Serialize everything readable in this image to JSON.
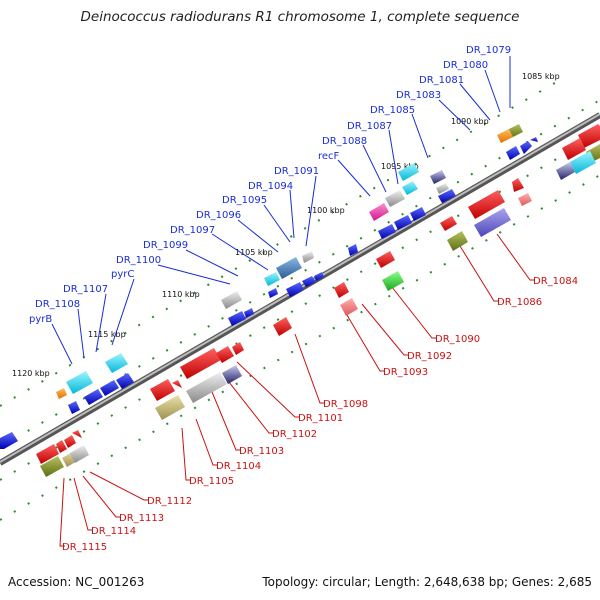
{
  "title": "Deinococcus radiodurans R1 chromosome 1, complete sequence",
  "footer": {
    "accession": "Accession: NC_001263",
    "stats": "Topology: circular; Length: 2,648,638 bp; Genes: 2,685"
  },
  "colors": {
    "forward_label": "#1a2dd6",
    "reverse_label": "#cc1111",
    "backbone": "#8a8a8a",
    "tick": "#2e8b2e"
  },
  "kbp_ticks": [
    "1085 kbp",
    "1090 kbp",
    "1095 kbp",
    "1100 kbp",
    "1105 kbp",
    "1110 kbp",
    "1115 kbp",
    "1120 kbp"
  ],
  "forward_labels": [
    "DR_1079",
    "DR_1080",
    "DR_1081",
    "DR_1083",
    "DR_1085",
    "DR_1087",
    "DR_1088",
    "recF",
    "DR_1091",
    "DR_1094",
    "DR_1095",
    "DR_1096",
    "DR_1097",
    "DR_1099",
    "DR_1100",
    "pyrC",
    "DR_1107",
    "DR_1108",
    "pyrB"
  ],
  "reverse_labels": [
    "DR_1084",
    "DR_1086",
    "DR_1090",
    "DR_1092",
    "DR_1093",
    "DR_1098",
    "DR_1101",
    "DR_1102",
    "DR_1103",
    "DR_1104",
    "DR_1105",
    "DR_1112",
    "DR_1113",
    "DR_1114",
    "DR_1115"
  ]
}
